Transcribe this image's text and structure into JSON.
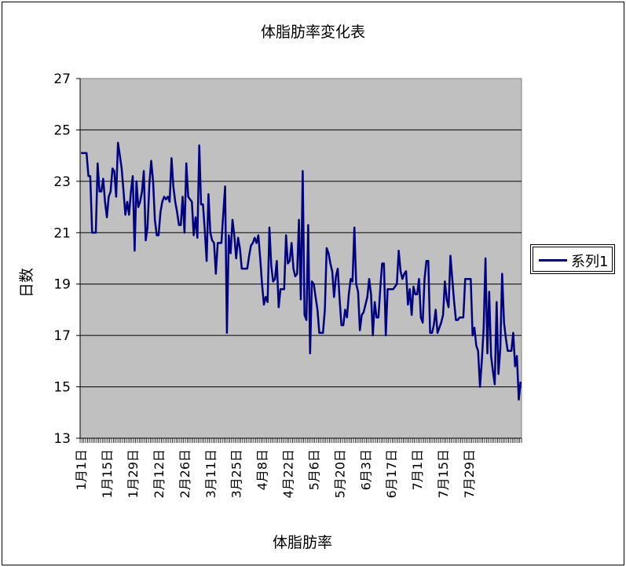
{
  "chart_data": {
    "type": "line",
    "title": "体脂肪率変化表",
    "xlabel": "体脂肪率",
    "ylabel": "日数",
    "ylim": [
      13,
      27
    ],
    "yticks": [
      "13",
      "15",
      "17",
      "19",
      "21",
      "23",
      "25",
      "27"
    ],
    "x_tick_labels": [
      "1月1日",
      "1月15日",
      "1月29日",
      "2月12日",
      "2月26日",
      "3月11日",
      "3月25日",
      "4月8日",
      "4月22日",
      "5月6日",
      "5月20日",
      "6月3日",
      "6月17日",
      "7月1日",
      "7月15日",
      "7月29日"
    ],
    "grid": true,
    "legend_position": "right",
    "colors": {
      "line": "#000080",
      "plot_bg": "#c0c0c0",
      "grid": "#000000"
    },
    "series": [
      {
        "name": "系列1",
        "values": [
          24.1,
          24.1,
          24.1,
          24.1,
          23.2,
          23.2,
          21.0,
          21.0,
          21.0,
          23.7,
          22.6,
          22.6,
          23.1,
          22.2,
          21.6,
          22.4,
          22.6,
          23.5,
          23.4,
          22.4,
          24.5,
          24.0,
          23.5,
          22.6,
          21.7,
          22.2,
          21.7,
          22.6,
          23.2,
          20.3,
          23.0,
          22.0,
          22.2,
          22.6,
          23.4,
          20.7,
          21.2,
          22.9,
          23.8,
          23.0,
          21.5,
          20.9,
          20.9,
          21.8,
          22.2,
          22.4,
          22.3,
          22.4,
          22.2,
          23.9,
          22.8,
          22.2,
          21.8,
          21.3,
          21.3,
          22.4,
          21.0,
          23.7,
          22.4,
          22.3,
          22.2,
          20.9,
          21.6,
          20.8,
          24.4,
          22.1,
          22.1,
          21.1,
          19.9,
          22.5,
          21.0,
          20.7,
          20.6,
          19.4,
          20.6,
          20.6,
          20.6,
          21.7,
          22.8,
          17.1,
          20.9,
          20.2,
          21.5,
          20.9,
          20.0,
          20.8,
          20.4,
          19.6,
          19.6,
          19.6,
          19.6,
          20.1,
          20.5,
          20.6,
          20.8,
          20.6,
          20.9,
          20.0,
          19.0,
          18.2,
          18.5,
          18.3,
          21.2,
          19.7,
          19.1,
          19.2,
          19.9,
          18.1,
          18.8,
          18.8,
          18.8,
          20.9,
          19.8,
          19.9,
          20.6,
          19.6,
          19.3,
          19.4,
          21.5,
          18.4,
          23.4,
          17.8,
          17.6,
          21.3,
          16.3,
          19.1,
          19.0,
          18.5,
          18.0,
          17.1,
          17.1,
          17.1,
          18.0,
          20.4,
          20.2,
          19.8,
          19.5,
          18.5,
          19.3,
          19.6,
          18.4,
          17.4,
          17.4,
          18.0,
          17.7,
          18.6,
          19.2,
          19.1,
          21.2,
          19.0,
          18.7,
          17.2,
          17.8,
          17.9,
          18.2,
          18.5,
          19.2,
          18.6,
          17.0,
          18.3,
          17.7,
          17.7,
          18.8,
          19.8,
          19.8,
          17.0,
          18.8,
          18.8,
          18.8,
          18.8,
          18.9,
          19.0,
          20.3,
          19.5,
          19.2,
          19.4,
          19.5,
          18.2,
          18.8,
          17.8,
          18.9,
          18.6,
          18.6,
          19.2,
          17.7,
          17.5,
          19.2,
          19.9,
          19.9,
          17.1,
          17.1,
          17.4,
          18.0,
          17.1,
          17.3,
          17.5,
          17.8,
          19.1,
          18.4,
          18.1,
          20.1,
          19.2,
          18.3,
          17.6,
          17.6,
          17.7,
          17.7,
          17.7,
          19.2,
          19.2,
          19.2,
          19.2,
          17.0,
          17.3,
          16.6,
          16.4,
          15.0,
          16.0,
          17.3,
          20.0,
          16.3,
          18.7,
          16.2,
          15.6,
          15.1,
          18.3,
          15.5,
          16.5,
          19.4,
          17.5,
          16.9,
          16.4,
          16.4,
          16.4,
          17.1,
          15.8,
          16.2,
          14.5,
          15.2
        ]
      }
    ]
  }
}
